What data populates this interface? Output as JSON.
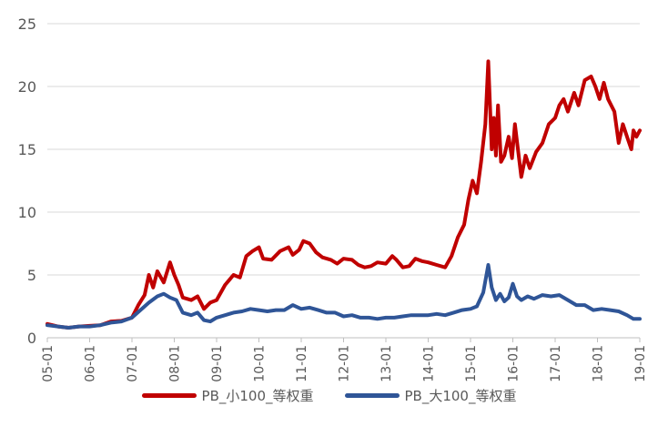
{
  "chart_data": {
    "type": "line",
    "title": "",
    "xlabel": "",
    "ylabel": "",
    "ylim": [
      0,
      25
    ],
    "yticks": [
      0,
      5,
      10,
      15,
      20,
      25
    ],
    "xticks": [
      "05-01",
      "06-01",
      "07-01",
      "08-01",
      "09-01",
      "10-01",
      "11-01",
      "12-01",
      "13-01",
      "14-01",
      "15-01",
      "16-01",
      "17-01",
      "18-01",
      "19-01"
    ],
    "grid": "horizontal",
    "legend_position": "bottom",
    "series": [
      {
        "name": "PB_小100_等权重",
        "color": "#C00000",
        "points": [
          [
            0,
            1.1
          ],
          [
            0.25,
            0.9
          ],
          [
            0.5,
            0.8
          ],
          [
            0.75,
            0.9
          ],
          [
            1,
            0.95
          ],
          [
            1.25,
            1.0
          ],
          [
            1.5,
            1.3
          ],
          [
            1.75,
            1.35
          ],
          [
            2,
            1.6
          ],
          [
            2.15,
            2.6
          ],
          [
            2.3,
            3.4
          ],
          [
            2.4,
            5.0
          ],
          [
            2.5,
            4.0
          ],
          [
            2.6,
            5.3
          ],
          [
            2.75,
            4.4
          ],
          [
            2.9,
            6.0
          ],
          [
            3,
            5.0
          ],
          [
            3.1,
            4.2
          ],
          [
            3.2,
            3.2
          ],
          [
            3.4,
            3.0
          ],
          [
            3.55,
            3.3
          ],
          [
            3.7,
            2.3
          ],
          [
            3.85,
            2.8
          ],
          [
            4,
            3.0
          ],
          [
            4.2,
            4.2
          ],
          [
            4.4,
            5.0
          ],
          [
            4.55,
            4.8
          ],
          [
            4.7,
            6.5
          ],
          [
            4.85,
            6.9
          ],
          [
            5,
            7.2
          ],
          [
            5.1,
            6.3
          ],
          [
            5.3,
            6.2
          ],
          [
            5.5,
            6.9
          ],
          [
            5.7,
            7.2
          ],
          [
            5.8,
            6.6
          ],
          [
            5.95,
            7.0
          ],
          [
            6.05,
            7.7
          ],
          [
            6.2,
            7.5
          ],
          [
            6.35,
            6.8
          ],
          [
            6.5,
            6.4
          ],
          [
            6.7,
            6.2
          ],
          [
            6.85,
            5.9
          ],
          [
            7,
            6.3
          ],
          [
            7.2,
            6.2
          ],
          [
            7.35,
            5.8
          ],
          [
            7.5,
            5.6
          ],
          [
            7.65,
            5.7
          ],
          [
            7.8,
            6.0
          ],
          [
            8,
            5.9
          ],
          [
            8.15,
            6.5
          ],
          [
            8.25,
            6.2
          ],
          [
            8.4,
            5.6
          ],
          [
            8.55,
            5.7
          ],
          [
            8.7,
            6.3
          ],
          [
            8.85,
            6.1
          ],
          [
            9,
            6.0
          ],
          [
            9.2,
            5.8
          ],
          [
            9.4,
            5.6
          ],
          [
            9.55,
            6.5
          ],
          [
            9.7,
            8.0
          ],
          [
            9.85,
            9.0
          ],
          [
            9.95,
            11.0
          ],
          [
            10.05,
            12.5
          ],
          [
            10.15,
            11.5
          ],
          [
            10.25,
            14.0
          ],
          [
            10.35,
            17.0
          ],
          [
            10.42,
            22.0
          ],
          [
            10.5,
            15.0
          ],
          [
            10.55,
            17.5
          ],
          [
            10.6,
            14.5
          ],
          [
            10.65,
            18.5
          ],
          [
            10.72,
            14.0
          ],
          [
            10.8,
            14.5
          ],
          [
            10.9,
            16.0
          ],
          [
            10.98,
            14.3
          ],
          [
            11.05,
            17.0
          ],
          [
            11.12,
            15.0
          ],
          [
            11.2,
            12.8
          ],
          [
            11.3,
            14.5
          ],
          [
            11.4,
            13.5
          ],
          [
            11.55,
            14.8
          ],
          [
            11.7,
            15.5
          ],
          [
            11.85,
            17.0
          ],
          [
            12,
            17.5
          ],
          [
            12.1,
            18.5
          ],
          [
            12.2,
            19.0
          ],
          [
            12.3,
            18.0
          ],
          [
            12.45,
            19.5
          ],
          [
            12.55,
            18.5
          ],
          [
            12.7,
            20.5
          ],
          [
            12.85,
            20.8
          ],
          [
            12.95,
            20.0
          ],
          [
            13.05,
            19.0
          ],
          [
            13.15,
            20.3
          ],
          [
            13.25,
            19.0
          ],
          [
            13.4,
            18.0
          ],
          [
            13.5,
            15.5
          ],
          [
            13.6,
            17.0
          ],
          [
            13.7,
            16.0
          ],
          [
            13.8,
            15.0
          ],
          [
            13.85,
            16.5
          ],
          [
            13.92,
            16.0
          ],
          [
            14,
            16.5
          ]
        ]
      },
      {
        "name": "PB_大100_等权重",
        "color": "#2F5597",
        "points": [
          [
            0,
            1.0
          ],
          [
            0.25,
            0.9
          ],
          [
            0.5,
            0.8
          ],
          [
            0.75,
            0.9
          ],
          [
            1,
            0.9
          ],
          [
            1.25,
            1.0
          ],
          [
            1.5,
            1.2
          ],
          [
            1.75,
            1.3
          ],
          [
            2,
            1.6
          ],
          [
            2.2,
            2.2
          ],
          [
            2.4,
            2.8
          ],
          [
            2.6,
            3.3
          ],
          [
            2.75,
            3.5
          ],
          [
            2.9,
            3.2
          ],
          [
            3.05,
            3.0
          ],
          [
            3.2,
            2.0
          ],
          [
            3.4,
            1.8
          ],
          [
            3.55,
            2.0
          ],
          [
            3.7,
            1.4
          ],
          [
            3.85,
            1.3
          ],
          [
            4,
            1.6
          ],
          [
            4.2,
            1.8
          ],
          [
            4.4,
            2.0
          ],
          [
            4.6,
            2.1
          ],
          [
            4.8,
            2.3
          ],
          [
            5,
            2.2
          ],
          [
            5.2,
            2.1
          ],
          [
            5.4,
            2.2
          ],
          [
            5.6,
            2.2
          ],
          [
            5.8,
            2.6
          ],
          [
            6,
            2.3
          ],
          [
            6.2,
            2.4
          ],
          [
            6.4,
            2.2
          ],
          [
            6.6,
            2.0
          ],
          [
            6.8,
            2.0
          ],
          [
            7,
            1.7
          ],
          [
            7.2,
            1.8
          ],
          [
            7.4,
            1.6
          ],
          [
            7.6,
            1.6
          ],
          [
            7.8,
            1.5
          ],
          [
            8,
            1.6
          ],
          [
            8.2,
            1.6
          ],
          [
            8.4,
            1.7
          ],
          [
            8.6,
            1.8
          ],
          [
            8.8,
            1.8
          ],
          [
            9,
            1.8
          ],
          [
            9.2,
            1.9
          ],
          [
            9.4,
            1.8
          ],
          [
            9.6,
            2.0
          ],
          [
            9.8,
            2.2
          ],
          [
            10,
            2.3
          ],
          [
            10.15,
            2.5
          ],
          [
            10.3,
            3.6
          ],
          [
            10.42,
            5.8
          ],
          [
            10.5,
            4.0
          ],
          [
            10.6,
            3.0
          ],
          [
            10.7,
            3.5
          ],
          [
            10.8,
            2.9
          ],
          [
            10.9,
            3.2
          ],
          [
            11,
            4.3
          ],
          [
            11.1,
            3.3
          ],
          [
            11.2,
            3.0
          ],
          [
            11.35,
            3.3
          ],
          [
            11.5,
            3.1
          ],
          [
            11.7,
            3.4
          ],
          [
            11.9,
            3.3
          ],
          [
            12.1,
            3.4
          ],
          [
            12.3,
            3.0
          ],
          [
            12.5,
            2.6
          ],
          [
            12.7,
            2.6
          ],
          [
            12.9,
            2.2
          ],
          [
            13.1,
            2.3
          ],
          [
            13.3,
            2.2
          ],
          [
            13.5,
            2.1
          ],
          [
            13.7,
            1.8
          ],
          [
            13.85,
            1.5
          ],
          [
            14,
            1.5
          ]
        ]
      }
    ]
  }
}
